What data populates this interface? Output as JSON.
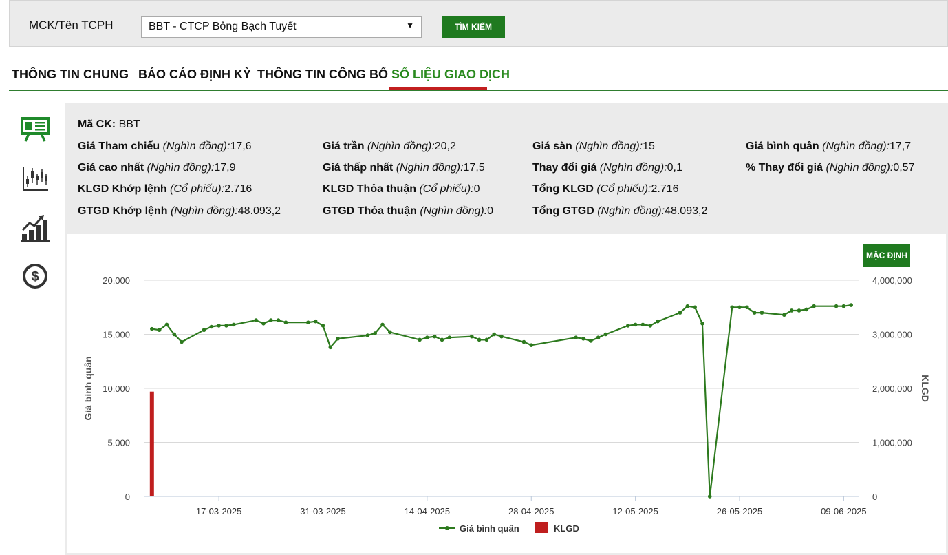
{
  "search": {
    "label": "MCK/Tên TCPH",
    "selected": "BBT - CTCP Bông Bạch Tuyết",
    "button": "TÌM KIẾM"
  },
  "tabs": [
    {
      "label": "THÔNG TIN CHUNG"
    },
    {
      "label": "BÁO CÁO ĐỊNH KỲ"
    },
    {
      "label": "THÔNG TIN CÔNG BỐ"
    },
    {
      "label": "SỐ LIỆU GIAO DỊCH"
    }
  ],
  "side_icons": [
    "presentation-board-icon",
    "candlestick-chart-icon",
    "bar-growth-chart-icon",
    "dollar-coin-icon"
  ],
  "info": {
    "ma_ck": {
      "label": "Mã CK:",
      "value": "BBT"
    },
    "rows": [
      [
        {
          "label": "Giá Tham chiếu",
          "unit": "(Nghìn đồng):",
          "value": "17,6"
        },
        {
          "label": "Giá trần",
          "unit": "(Nghìn đồng):",
          "value": "20,2"
        },
        {
          "label": "Giá sàn",
          "unit": "(Nghìn đồng):",
          "value": "15"
        },
        {
          "label": "Giá bình quân",
          "unit": "(Nghìn đồng):",
          "value": "17,7"
        }
      ],
      [
        {
          "label": "Giá cao nhất",
          "unit": "(Nghìn đồng):",
          "value": "17,9"
        },
        {
          "label": "Giá thấp nhất",
          "unit": "(Nghìn đồng):",
          "value": "17,5"
        },
        {
          "label": "Thay đổi giá",
          "unit": "(Nghìn đồng):",
          "value": "0,1"
        },
        {
          "label": "% Thay đổi giá",
          "unit": "(Nghìn đồng):",
          "value": "0,57"
        }
      ],
      [
        {
          "label": "KLGD Khớp lệnh",
          "unit": "(Cổ phiếu):",
          "value": "2.716"
        },
        {
          "label": "KLGD Thỏa thuận",
          "unit": "(Cổ phiếu):",
          "value": "0"
        },
        {
          "label": "Tổng KLGD",
          "unit": "(Cổ phiếu):",
          "value": "2.716"
        }
      ],
      [
        {
          "label": "GTGD Khớp lệnh",
          "unit": "(Nghìn đồng):",
          "value": "48.093,2"
        },
        {
          "label": "GTGD Thỏa thuận",
          "unit": "(Nghìn đồng):",
          "value": "0"
        },
        {
          "label": "Tổng GTGD",
          "unit": "(Nghìn đồng):",
          "value": "48.093,2"
        }
      ]
    ]
  },
  "chart_controls": {
    "default_button": "MẶC ĐỊNH"
  },
  "colors": {
    "line": "#2d7a1e",
    "bar": "#bf1e1e",
    "accent": "#1f7a1f",
    "tab_underline": "#c21f1f"
  },
  "chart_data": {
    "type": "line",
    "ylabel": "Giá bình quân",
    "y2label": "KLGD",
    "ylim": [
      0,
      20000
    ],
    "y2lim": [
      0,
      4000000
    ],
    "yticks": [
      "0",
      "5,000",
      "10,000",
      "15,000",
      "20,000"
    ],
    "y2ticks": [
      "0",
      "1,000,000",
      "2,000,000",
      "3,000,000",
      "4,000,000"
    ],
    "xrange": [
      "2025-03-07",
      "2025-06-11"
    ],
    "xticks": [
      {
        "date": "2025-03-17",
        "label": "17-03-2025"
      },
      {
        "date": "2025-03-31",
        "label": "31-03-2025"
      },
      {
        "date": "2025-04-14",
        "label": "14-04-2025"
      },
      {
        "date": "2025-04-28",
        "label": "28-04-2025"
      },
      {
        "date": "2025-05-12",
        "label": "12-05-2025"
      },
      {
        "date": "2025-05-26",
        "label": "26-05-2025"
      },
      {
        "date": "2025-06-09",
        "label": "09-06-2025"
      }
    ],
    "grid": true,
    "legend_position": "bottom-center",
    "series": [
      {
        "name": "Giá bình quân",
        "kind": "line",
        "axis": "left",
        "points": [
          [
            "2025-03-08",
            15500
          ],
          [
            "2025-03-09",
            15400
          ],
          [
            "2025-03-10",
            15900
          ],
          [
            "2025-03-11",
            15000
          ],
          [
            "2025-03-12",
            14300
          ],
          [
            "2025-03-15",
            15400
          ],
          [
            "2025-03-16",
            15700
          ],
          [
            "2025-03-17",
            15800
          ],
          [
            "2025-03-18",
            15800
          ],
          [
            "2025-03-19",
            15900
          ],
          [
            "2025-03-22",
            16300
          ],
          [
            "2025-03-23",
            16000
          ],
          [
            "2025-03-24",
            16300
          ],
          [
            "2025-03-25",
            16300
          ],
          [
            "2025-03-26",
            16100
          ],
          [
            "2025-03-29",
            16100
          ],
          [
            "2025-03-30",
            16200
          ],
          [
            "2025-03-31",
            15800
          ],
          [
            "2025-04-01",
            13800
          ],
          [
            "2025-04-02",
            14600
          ],
          [
            "2025-04-06",
            14900
          ],
          [
            "2025-04-07",
            15100
          ],
          [
            "2025-04-08",
            15900
          ],
          [
            "2025-04-09",
            15200
          ],
          [
            "2025-04-13",
            14500
          ],
          [
            "2025-04-14",
            14700
          ],
          [
            "2025-04-15",
            14800
          ],
          [
            "2025-04-16",
            14500
          ],
          [
            "2025-04-17",
            14700
          ],
          [
            "2025-04-20",
            14800
          ],
          [
            "2025-04-21",
            14500
          ],
          [
            "2025-04-22",
            14500
          ],
          [
            "2025-04-23",
            15000
          ],
          [
            "2025-04-24",
            14800
          ],
          [
            "2025-04-27",
            14300
          ],
          [
            "2025-04-28",
            14000
          ],
          [
            "2025-05-04",
            14700
          ],
          [
            "2025-05-05",
            14600
          ],
          [
            "2025-05-06",
            14400
          ],
          [
            "2025-05-07",
            14700
          ],
          [
            "2025-05-08",
            15000
          ],
          [
            "2025-05-11",
            15800
          ],
          [
            "2025-05-12",
            15900
          ],
          [
            "2025-05-13",
            15900
          ],
          [
            "2025-05-14",
            15800
          ],
          [
            "2025-05-15",
            16200
          ],
          [
            "2025-05-18",
            17000
          ],
          [
            "2025-05-19",
            17600
          ],
          [
            "2025-05-20",
            17500
          ],
          [
            "2025-05-21",
            16000
          ],
          [
            "2025-05-22",
            0
          ],
          [
            "2025-05-25",
            17500
          ],
          [
            "2025-05-26",
            17500
          ],
          [
            "2025-05-27",
            17500
          ],
          [
            "2025-05-28",
            17000
          ],
          [
            "2025-05-29",
            17000
          ],
          [
            "2025-06-01",
            16800
          ],
          [
            "2025-06-02",
            17200
          ],
          [
            "2025-06-03",
            17200
          ],
          [
            "2025-06-04",
            17300
          ],
          [
            "2025-06-05",
            17600
          ],
          [
            "2025-06-08",
            17600
          ],
          [
            "2025-06-09",
            17600
          ],
          [
            "2025-06-10",
            17700
          ]
        ]
      },
      {
        "name": "KLGD",
        "kind": "bar",
        "axis": "right",
        "points": [
          [
            "2025-03-08",
            1940000
          ]
        ]
      }
    ]
  }
}
